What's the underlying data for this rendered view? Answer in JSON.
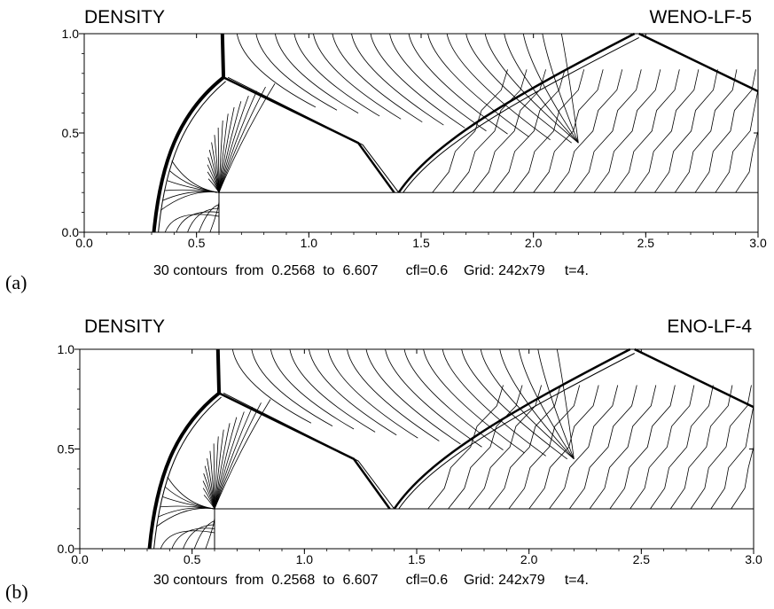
{
  "chart_data": [
    {
      "type": "contour",
      "panel_label": "(a)",
      "title": "DENSITY",
      "method": "WENO-LF-5",
      "caption": "30 contours  from  0.2568  to  6.607       cfl=0.6    Grid: 242x79     t=4.",
      "x_ticks": [
        "0.0",
        "0.5",
        "1.0",
        "1.5",
        "2.0",
        "2.5",
        "3.0"
      ],
      "y_ticks": [
        "0.0",
        "0.5",
        "1.0"
      ],
      "xlim": [
        0,
        3
      ],
      "ylim": [
        0,
        1
      ],
      "step": {
        "x": 0.6,
        "height": 0.2
      },
      "num_contours": 30,
      "contour_min": 0.2568,
      "contour_max": 6.607,
      "cfl": 0.6,
      "grid": "242x79",
      "t": 4
    },
    {
      "type": "contour",
      "panel_label": "(b)",
      "title": "DENSITY",
      "method": "ENO-LF-4",
      "caption": "30 contours  from  0.2568  to  6.607       cfl=0.6    Grid: 242x79     t=4.",
      "x_ticks": [
        "0.0",
        "0.5",
        "1.0",
        "1.5",
        "2.0",
        "2.5",
        "3.0"
      ],
      "y_ticks": [
        "0.0",
        "0.5",
        "1.0"
      ],
      "xlim": [
        0,
        3
      ],
      "ylim": [
        0,
        1
      ],
      "step": {
        "x": 0.6,
        "height": 0.2
      },
      "num_contours": 30,
      "contour_min": 0.2568,
      "contour_max": 6.607,
      "cfl": 0.6,
      "grid": "242x79",
      "t": 4
    }
  ]
}
